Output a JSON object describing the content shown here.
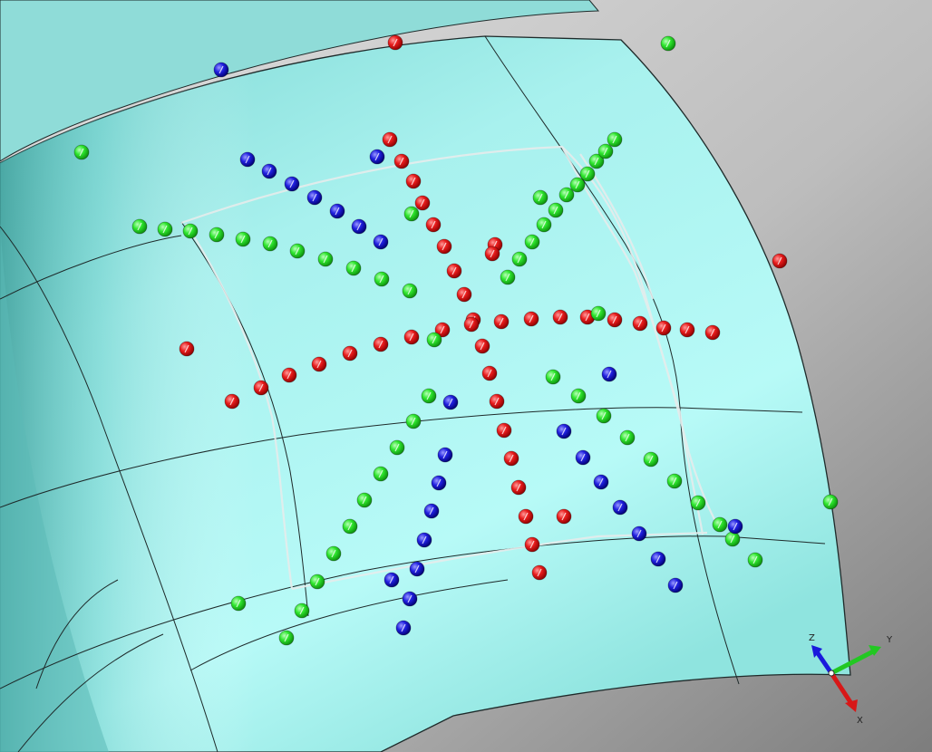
{
  "viewport": {
    "background_top": "#d2d2d2",
    "background_bottom": "#8a8a8a",
    "surface_color": "#a6f2ee",
    "surface_color_shade": "#6fc9c5",
    "edge_color": "#1e2a2a",
    "trim_color": "#e9ecec"
  },
  "marker_colors": {
    "red": "#e01818",
    "green": "#22dd22",
    "blue": "#1a1adc"
  },
  "triad": {
    "z_label": "Z",
    "y_label": "Y",
    "x_label": "X",
    "z_color": "#1a1adc",
    "y_color": "#22c822",
    "x_color": "#d81818"
  }
}
